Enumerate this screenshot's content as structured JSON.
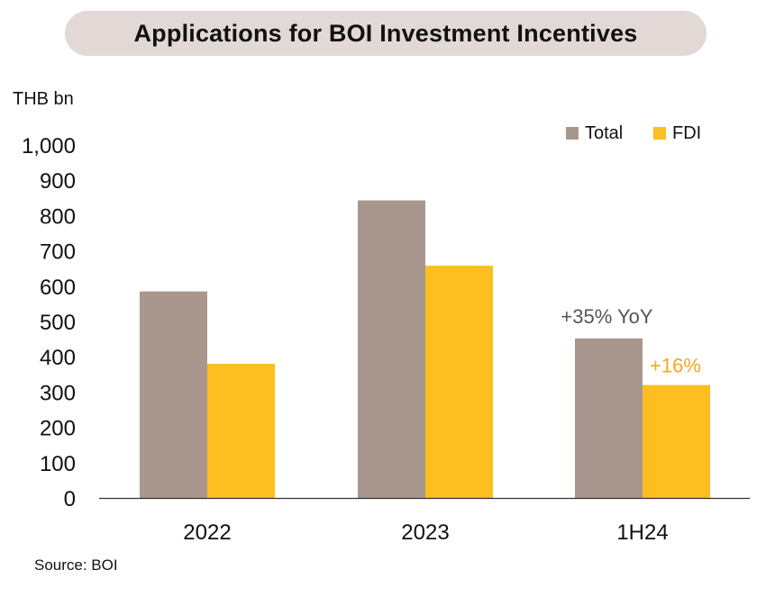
{
  "title": "Applications for BOI Investment Incentives",
  "source": "Source: BOI",
  "colors": {
    "total": "#a8968f",
    "fdi": "#fdbe1f",
    "annotation_total": "#555555",
    "annotation_fdi": "#f5a623",
    "title_bg": "#e2d9d7"
  },
  "chart_data": {
    "type": "bar",
    "unit_label": "THB bn",
    "categories": [
      "2022",
      "2023",
      "1H24"
    ],
    "series": [
      {
        "name": "Total",
        "values": [
          585,
          843,
          452
        ]
      },
      {
        "name": "FDI",
        "values": [
          380,
          658,
          320
        ]
      }
    ],
    "ylim": [
      0,
      1000
    ],
    "yticks": [
      "0",
      "100",
      "200",
      "300",
      "400",
      "500",
      "600",
      "700",
      "800",
      "900",
      "1,000"
    ],
    "ytick_values": [
      0,
      100,
      200,
      300,
      400,
      500,
      600,
      700,
      800,
      900,
      1000
    ],
    "legend_position": "top-right",
    "grid": false,
    "annotations": [
      {
        "text": "+35% YoY",
        "category": "1H24",
        "series": "Total"
      },
      {
        "text": "+16%",
        "category": "1H24",
        "series": "FDI"
      }
    ]
  }
}
